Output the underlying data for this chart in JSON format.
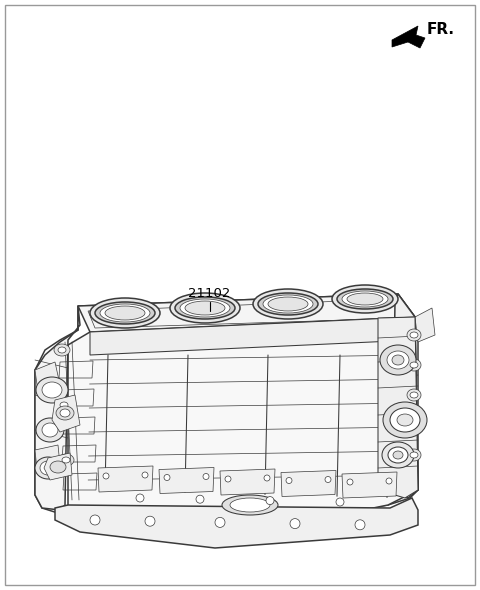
{
  "bg_color": "#ffffff",
  "line_color": "#3a3a3a",
  "part_number": "21102",
  "fr_label": "FR.",
  "figsize": [
    4.8,
    5.9
  ],
  "dpi": 100,
  "lw_main": 1.1,
  "lw_med": 0.75,
  "lw_thin": 0.5,
  "border_lw": 1.0,
  "border_color": "#999999"
}
